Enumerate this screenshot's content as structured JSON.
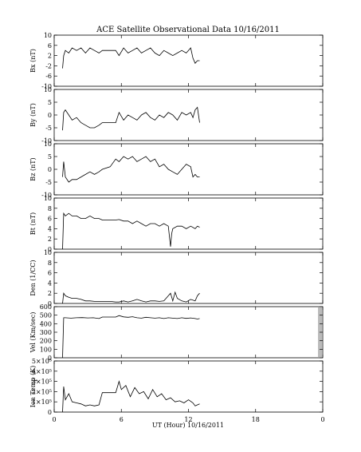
{
  "chart_data": {
    "type": "line",
    "title": "ACE Satellite Observational Data",
    "date": "10/16/2011",
    "xlabel": "UT (Hour)",
    "xlim": [
      0,
      24
    ],
    "xticks": [
      "0",
      "6",
      "12",
      "18",
      "0"
    ],
    "grid": false,
    "panels": [
      {
        "ylabel": "Bx (nT)",
        "ylim": [
          -10,
          10
        ],
        "yticks": [
          "10",
          "6",
          "2",
          "-2",
          "-6",
          "-10"
        ],
        "ytick_values": [
          10,
          6,
          2,
          -2,
          -6,
          -10
        ],
        "series": [
          {
            "x": [
              0.75,
              0.85,
              1.0,
              1.3,
              1.6,
              2.0,
              2.4,
              2.8,
              3.2,
              3.6,
              4.0,
              4.3,
              5.0,
              5.5,
              5.8,
              6.2,
              6.6,
              7.0,
              7.4,
              7.8,
              8.2,
              8.6,
              9.0,
              9.4,
              9.8,
              10.2,
              10.6,
              11.0,
              11.4,
              11.8,
              12.2,
              12.4,
              12.6,
              12.8,
              13.0
            ],
            "y": [
              -3,
              2,
              4,
              3,
              5,
              4,
              5,
              3,
              5,
              4,
              3,
              4,
              4,
              4,
              2,
              5,
              3,
              4,
              5,
              3,
              4,
              5,
              3,
              2,
              4,
              3,
              2,
              3,
              4,
              3,
              5,
              1,
              -1,
              0,
              0
            ]
          }
        ]
      },
      {
        "ylabel": "By (nT)",
        "ylim": [
          -10,
          10
        ],
        "yticks": [
          "10",
          "5",
          "0",
          "-5",
          "-10"
        ],
        "ytick_values": [
          10,
          5,
          0,
          -5,
          -10
        ],
        "series": [
          {
            "x": [
              0.75,
              0.85,
              1.0,
              1.3,
              1.6,
              2.0,
              2.4,
              2.8,
              3.2,
              3.6,
              4.0,
              4.3,
              5.0,
              5.5,
              5.8,
              6.2,
              6.6,
              7.0,
              7.4,
              7.8,
              8.2,
              8.6,
              9.0,
              9.4,
              9.8,
              10.2,
              10.6,
              11.0,
              11.4,
              11.8,
              12.2,
              12.4,
              12.6,
              12.8,
              13.0
            ],
            "y": [
              -6,
              1,
              2,
              0,
              -2,
              -1,
              -3,
              -4,
              -5,
              -5,
              -4,
              -3,
              -3,
              -3,
              1,
              -2,
              0,
              -1,
              -2,
              0,
              1,
              -1,
              -2,
              0,
              -1,
              1,
              0,
              -2,
              1,
              0,
              1,
              -1,
              2,
              3,
              -3
            ]
          }
        ]
      },
      {
        "ylabel": "Bz (nT)",
        "ylim": [
          -10,
          10
        ],
        "yticks": [
          "10",
          "5",
          "0",
          "-5",
          "-10"
        ],
        "ytick_values": [
          10,
          5,
          0,
          -5,
          -10
        ],
        "series": [
          {
            "x": [
              0.75,
              0.85,
              1.0,
              1.3,
              1.6,
              2.0,
              2.4,
              2.8,
              3.2,
              3.6,
              4.0,
              4.3,
              5.0,
              5.5,
              5.8,
              6.2,
              6.6,
              7.0,
              7.4,
              7.8,
              8.2,
              8.6,
              9.0,
              9.4,
              9.8,
              10.2,
              10.6,
              11.0,
              11.4,
              11.8,
              12.2,
              12.4,
              12.6,
              12.8,
              13.0
            ],
            "y": [
              -3,
              3,
              -3,
              -5,
              -4,
              -4,
              -3,
              -2,
              -1,
              -2,
              -1,
              0,
              1,
              4,
              3,
              5,
              4,
              5,
              3,
              4,
              5,
              3,
              4,
              1,
              2,
              0,
              -1,
              -2,
              0,
              2,
              1,
              -3,
              -2,
              -3,
              -3
            ]
          }
        ]
      },
      {
        "ylabel": "Bt (nT)",
        "ylim": [
          0,
          10
        ],
        "yticks": [
          "10",
          "8",
          "6",
          "4",
          "2",
          "0"
        ],
        "ytick_values": [
          10,
          8,
          6,
          4,
          2,
          0
        ],
        "series": [
          {
            "x": [
              0.75,
              0.85,
              1.0,
              1.3,
              1.6,
              2.0,
              2.4,
              2.8,
              3.2,
              3.6,
              4.0,
              4.3,
              5.0,
              5.5,
              5.8,
              6.2,
              6.6,
              7.0,
              7.4,
              7.8,
              8.2,
              8.6,
              9.0,
              9.4,
              9.8,
              10.2,
              10.4,
              10.5,
              10.6,
              11.0,
              11.4,
              11.8,
              12.2,
              12.6,
              12.8,
              13.0
            ],
            "y": [
              0,
              7,
              6.5,
              7,
              6.5,
              6.5,
              6,
              6,
              6.5,
              6,
              6,
              5.7,
              5.7,
              5.7,
              5.8,
              5.5,
              5.5,
              5,
              5.5,
              5,
              4.5,
              5,
              5,
              4.5,
              5,
              4.5,
              0.5,
              3,
              4,
              4.5,
              4.5,
              4,
              4.5,
              4,
              4.5,
              4.3
            ]
          }
        ]
      },
      {
        "ylabel": "Den (1/CC)",
        "ylim": [
          0,
          10
        ],
        "yticks": [
          "10",
          "8",
          "6",
          "4",
          "2",
          "0"
        ],
        "ytick_values": [
          10,
          8,
          6,
          4,
          2,
          0
        ],
        "series": [
          {
            "x": [
              0.75,
              0.85,
              1.0,
              1.3,
              1.6,
              2.0,
              2.4,
              2.8,
              3.2,
              3.6,
              4.0,
              4.3,
              5.0,
              5.5,
              5.8,
              6.2,
              6.6,
              7.0,
              7.4,
              7.8,
              8.2,
              8.6,
              9.0,
              9.4,
              9.8,
              10.2,
              10.4,
              10.6,
              10.8,
              11.0,
              11.4,
              11.8,
              12.2,
              12.6,
              12.8,
              13.0
            ],
            "y": [
              0,
              2,
              1.5,
              1.2,
              1,
              1,
              0.8,
              0.5,
              0.5,
              0.4,
              0.4,
              0.4,
              0.4,
              0.3,
              0.3,
              0.5,
              0.3,
              0.5,
              0.8,
              0.5,
              0.3,
              0.5,
              0.5,
              0.4,
              0.5,
              1.5,
              2,
              0.5,
              2.2,
              1,
              0.5,
              0.3,
              0.8,
              0.5,
              1.5,
              2
            ]
          }
        ]
      },
      {
        "ylabel": "Vel (Km/sec)",
        "ylim": [
          0,
          600
        ],
        "yticks": [
          "600",
          "500",
          "400",
          "300",
          "200",
          "100",
          "0"
        ],
        "ytick_values": [
          600,
          500,
          400,
          300,
          200,
          100,
          0
        ],
        "series": [
          {
            "x": [
              0.75,
              0.85,
              1.0,
              1.5,
              2.0,
              2.5,
              3.0,
              3.5,
              4.0,
              4.3,
              5.0,
              5.5,
              5.8,
              6.2,
              6.6,
              7.0,
              7.4,
              7.8,
              8.2,
              8.6,
              9.0,
              9.4,
              9.8,
              10.2,
              10.6,
              11.0,
              11.4,
              11.8,
              12.2,
              12.6,
              12.8,
              13.0
            ],
            "y": [
              0,
              470,
              470,
              465,
              470,
              472,
              468,
              470,
              460,
              478,
              478,
              478,
              495,
              480,
              475,
              482,
              470,
              465,
              475,
              470,
              465,
              470,
              460,
              470,
              465,
              460,
              470,
              462,
              468,
              460,
              455,
              460
            ]
          }
        ]
      },
      {
        "ylabel": "Ion Temp (K)",
        "ylim": [
          0,
          500000
        ],
        "yticks": [
          "5×10⁵",
          "4×10⁵",
          "3×10⁵",
          "2×10⁵",
          "1×10⁵",
          "0"
        ],
        "ytick_values": [
          500000,
          400000,
          300000,
          200000,
          100000,
          0
        ],
        "series": [
          {
            "x": [
              0.75,
              0.85,
              1.0,
              1.3,
              1.6,
              2.0,
              2.4,
              2.8,
              3.2,
              3.6,
              4.0,
              4.3,
              5.0,
              5.5,
              5.8,
              6.0,
              6.4,
              6.8,
              7.2,
              7.6,
              8.0,
              8.4,
              8.8,
              9.2,
              9.6,
              10.0,
              10.4,
              10.8,
              11.2,
              11.6,
              12.0,
              12.4,
              12.6,
              12.8,
              13.0
            ],
            "y": [
              0,
              250000,
              120000,
              180000,
              100000,
              90000,
              80000,
              60000,
              70000,
              60000,
              70000,
              190000,
              190000,
              190000,
              300000,
              220000,
              260000,
              150000,
              240000,
              180000,
              200000,
              130000,
              220000,
              150000,
              180000,
              120000,
              140000,
              100000,
              110000,
              90000,
              120000,
              90000,
              60000,
              70000,
              80000
            ]
          }
        ]
      }
    ]
  }
}
